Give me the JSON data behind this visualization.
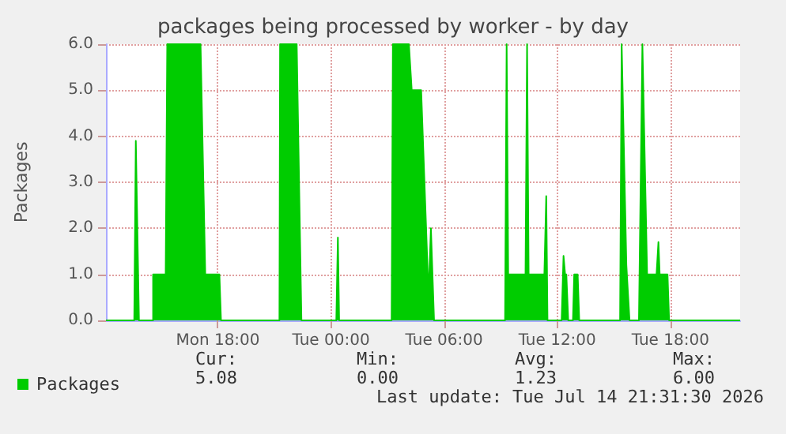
{
  "chart_data": {
    "type": "area",
    "title": "packages being processed by worker - by day",
    "ylabel": "Packages",
    "x": [
      "2026-07-13T12:04",
      "2026-07-13T13:34",
      "2026-07-13T13:39",
      "2026-07-13T13:49",
      "2026-07-13T14:34",
      "2026-07-13T14:34",
      "2026-07-13T15:14",
      "2026-07-13T15:19",
      "2026-07-13T17:05",
      "2026-07-13T17:20",
      "2026-07-13T18:05",
      "2026-07-13T18:10",
      "2026-07-13T21:16",
      "2026-07-13T21:18",
      "2026-07-13T22:11",
      "2026-07-13T22:26",
      "2026-07-14T00:17",
      "2026-07-14T00:22",
      "2026-07-14T00:26",
      "2026-07-14T03:13",
      "2026-07-14T03:17",
      "2026-07-14T04:08",
      "2026-07-14T04:17",
      "2026-07-14T04:47",
      "2026-07-14T05:08",
      "2026-07-14T05:13",
      "2026-07-14T05:18",
      "2026-07-14T05:28",
      "2026-07-14T09:14",
      "2026-07-14T09:19",
      "2026-07-14T09:24",
      "2026-07-14T10:19",
      "2026-07-14T10:24",
      "2026-07-14T10:29",
      "2026-07-14T11:19",
      "2026-07-14T11:25",
      "2026-07-14T11:29",
      "2026-07-14T12:14",
      "2026-07-14T12:20",
      "2026-07-14T12:25",
      "2026-07-14T12:29",
      "2026-07-14T12:35",
      "2026-07-14T12:50",
      "2026-07-14T12:54",
      "2026-07-14T13:05",
      "2026-07-14T13:10",
      "2026-07-14T15:20",
      "2026-07-14T15:25",
      "2026-07-14T15:40",
      "2026-07-14T15:50",
      "2026-07-14T16:20",
      "2026-07-14T16:31",
      "2026-07-14T16:46",
      "2026-07-14T17:16",
      "2026-07-14T17:22",
      "2026-07-14T17:26",
      "2026-07-14T17:51",
      "2026-07-14T17:56",
      "2026-07-14T21:42"
    ],
    "series": [
      {
        "name": "Packages",
        "color": "#00cc00",
        "values": [
          0,
          0,
          3.9,
          0,
          0,
          1,
          1,
          6,
          6,
          1,
          1,
          0,
          0,
          6,
          6,
          0,
          0,
          1.8,
          0,
          0,
          6,
          6,
          5,
          5,
          1,
          1,
          2,
          0,
          0,
          6,
          1,
          1,
          6,
          1,
          1,
          2.7,
          0,
          0,
          1.4,
          1,
          1,
          0,
          0,
          1,
          1,
          0,
          0,
          6,
          1.2,
          0,
          0,
          6,
          1,
          1,
          1.7,
          1,
          1,
          0,
          0
        ]
      }
    ],
    "xlim": [
      "2026-07-13T12:04",
      "2026-07-14T21:42"
    ],
    "xticks": [
      {
        "value": "2026-07-13T18:00",
        "label": "Mon 18:00"
      },
      {
        "value": "2026-07-14T00:00",
        "label": "Tue 00:00"
      },
      {
        "value": "2026-07-14T06:00",
        "label": "Tue 06:00"
      },
      {
        "value": "2026-07-14T12:00",
        "label": "Tue 12:00"
      },
      {
        "value": "2026-07-14T18:00",
        "label": "Tue 18:00"
      }
    ],
    "ylim": [
      0,
      6
    ],
    "yticks": [
      {
        "value": 0,
        "label": "0.0"
      },
      {
        "value": 1,
        "label": "1.0"
      },
      {
        "value": 2,
        "label": "2.0"
      },
      {
        "value": 3,
        "label": "3.0"
      },
      {
        "value": 4,
        "label": "4.0"
      },
      {
        "value": 5,
        "label": "5.0"
      },
      {
        "value": 6,
        "label": "6.0"
      }
    ],
    "grid": true,
    "legend": "bottom left",
    "marker": "none",
    "annotations": [
      "Cur:",
      "Min:",
      "Avg:",
      "Max:",
      "5.08",
      "0.00",
      "1.23",
      "6.00",
      "Last update: Tue Jul 14 21:31:30 2026"
    ]
  }
}
